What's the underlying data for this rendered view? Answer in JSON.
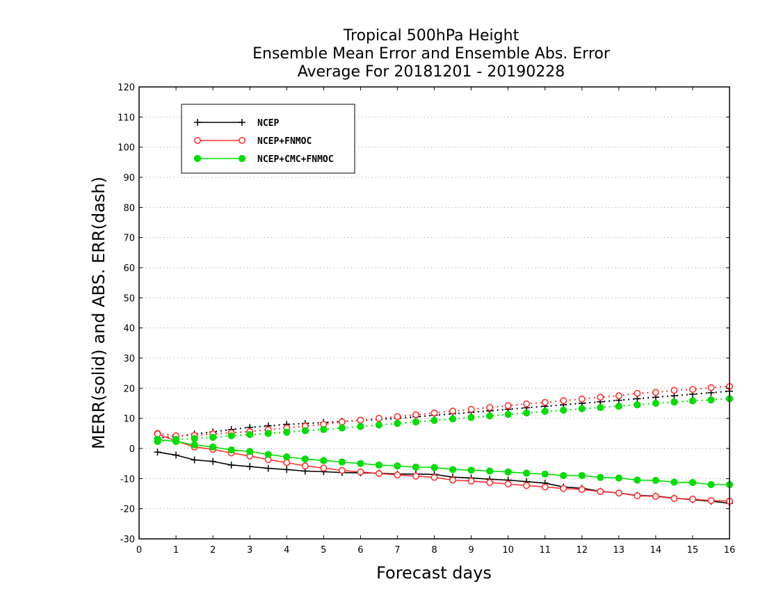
{
  "chart_data": {
    "type": "line",
    "title_lines": [
      "Tropical 500hPa Height",
      "Ensemble Mean Error and Ensemble Abs. Error",
      "Average For 20181201 - 20190228"
    ],
    "xlabel": "Forecast days",
    "ylabel": "MERR(solid) and ABS. ERR(dash)",
    "xlim": [
      0,
      16
    ],
    "ylim": [
      -30,
      120
    ],
    "xticks": [
      "0",
      "1",
      "2",
      "3",
      "4",
      "5",
      "6",
      "7",
      "8",
      "9",
      "10",
      "11",
      "12",
      "13",
      "14",
      "15",
      "16"
    ],
    "yticks": [
      "-30",
      "-20",
      "-10",
      "0",
      "10",
      "20",
      "30",
      "40",
      "50",
      "60",
      "70",
      "80",
      "90",
      "100",
      "110",
      "120"
    ],
    "grid": "horizontal dotted",
    "legend_position": "top-left",
    "x": [
      0.5,
      1,
      1.5,
      2,
      2.5,
      3,
      3.5,
      4,
      4.5,
      5,
      5.5,
      6,
      6.5,
      7,
      7.5,
      8,
      8.5,
      9,
      9.5,
      10,
      10.5,
      11,
      11.5,
      12,
      12.5,
      13,
      13.5,
      14,
      14.5,
      15,
      15.5,
      16
    ],
    "series": [
      {
        "name": "NCEP",
        "color": "#000000",
        "marker": "plus",
        "merr": [
          -1.2,
          -2.2,
          -3.8,
          -4.3,
          -5.5,
          -6,
          -6.6,
          -7,
          -7.5,
          -7.7,
          -8,
          -8.1,
          -8.2,
          -8.5,
          -8.5,
          -8.6,
          -9.5,
          -9.8,
          -10.2,
          -10.5,
          -11,
          -11.5,
          -12.8,
          -13.2,
          -14.2,
          -14.8,
          -15.6,
          -15.8,
          -16.5,
          -17,
          -17.5,
          -18.2
        ],
        "abserr": [
          3.5,
          4,
          4.8,
          5.5,
          6.3,
          7,
          7.5,
          8,
          8.3,
          8.6,
          9,
          9.3,
          9.6,
          10,
          10.5,
          11,
          11.5,
          12,
          12.5,
          13,
          13.5,
          14,
          14.5,
          15,
          15.5,
          16,
          16.5,
          17,
          17.5,
          18,
          18.5,
          19
        ]
      },
      {
        "name": "NCEP+FNMOC",
        "color": "#ff3030",
        "marker": "open-circle",
        "merr": [
          4.8,
          2.5,
          0.5,
          -0.3,
          -1.5,
          -2.5,
          -3.7,
          -4.7,
          -5.8,
          -6.5,
          -7.3,
          -7.8,
          -8.3,
          -8.8,
          -9.2,
          -9.6,
          -10.5,
          -10.8,
          -11.3,
          -11.8,
          -12.3,
          -12.8,
          -13.3,
          -13.6,
          -14.3,
          -14.8,
          -15.7,
          -15.9,
          -16.6,
          -16.8,
          -17.3,
          -17.5
        ],
        "abserr": [
          5,
          4.2,
          4.3,
          4.8,
          5.2,
          5.6,
          6.2,
          6.8,
          7.4,
          8,
          8.8,
          9.4,
          10,
          10.6,
          11.2,
          11.8,
          12.4,
          13,
          13.6,
          14.2,
          14.8,
          15.3,
          15.9,
          16.4,
          17,
          17.5,
          18.3,
          18.6,
          19.3,
          19.6,
          20.2,
          20.6
        ]
      },
      {
        "name": "NCEP+CMC+FNMOC",
        "color": "#00dd00",
        "marker": "filled-circle",
        "merr": [
          3,
          2.3,
          1.2,
          0.5,
          -0.5,
          -1,
          -2,
          -2.8,
          -3.5,
          -4,
          -4.5,
          -5,
          -5.5,
          -5.8,
          -6.2,
          -6.3,
          -7,
          -7.2,
          -7.5,
          -7.8,
          -8.2,
          -8.5,
          -9,
          -9,
          -9.6,
          -9.8,
          -10.5,
          -10.6,
          -11.2,
          -11.3,
          -12,
          -12
        ],
        "abserr": [
          2.3,
          3,
          3.3,
          3.7,
          4.2,
          4.6,
          5,
          5.4,
          5.9,
          6.3,
          6.8,
          7.3,
          7.8,
          8.3,
          8.8,
          9.3,
          9.8,
          10.3,
          10.8,
          11.3,
          11.8,
          12.3,
          12.7,
          13.2,
          13.6,
          14,
          14.5,
          15,
          15.4,
          15.8,
          16.1,
          16.5
        ]
      }
    ]
  }
}
